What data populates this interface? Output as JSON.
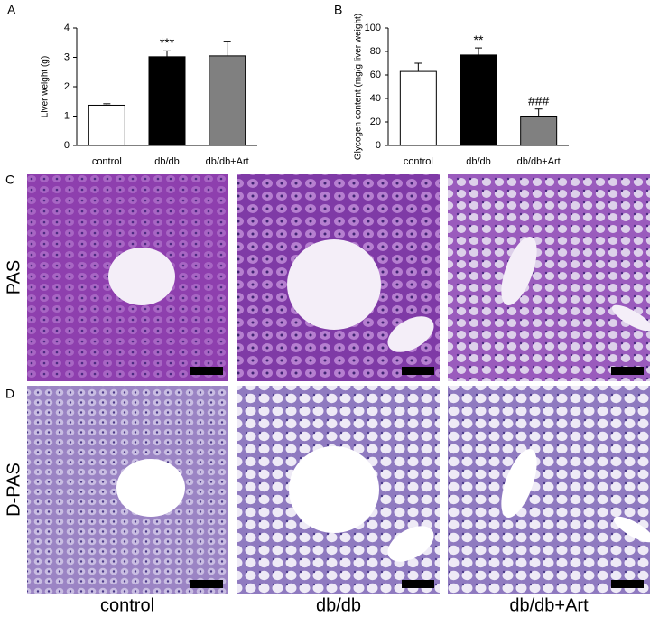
{
  "chart_data": [
    {
      "type": "bar",
      "ylabel": "Liver weight (g)",
      "categories": [
        "control",
        "db/db",
        "db/db+Art"
      ],
      "values": [
        1.37,
        3.02,
        3.05
      ],
      "errors": [
        0.05,
        0.2,
        0.5
      ],
      "colors": [
        "#ffffff",
        "#000000",
        "#808080"
      ],
      "annotations": [
        null,
        "***",
        null
      ],
      "ylim": [
        0,
        4
      ],
      "yticks": [
        0,
        1,
        2,
        3,
        4
      ],
      "grid": false
    },
    {
      "type": "bar",
      "ylabel": "Glycogen content (mg/g liver weight)",
      "categories": [
        "control",
        "db/db",
        "db/db+Art"
      ],
      "values": [
        63,
        77,
        25
      ],
      "errors": [
        7,
        6,
        6
      ],
      "colors": [
        "#ffffff",
        "#000000",
        "#808080"
      ],
      "annotations": [
        null,
        "**",
        "###"
      ],
      "ylim": [
        0,
        100
      ],
      "yticks": [
        0,
        20,
        40,
        60,
        80,
        100
      ],
      "grid": false
    }
  ],
  "figure": {
    "panel_labels": [
      "A",
      "B",
      "C",
      "D"
    ],
    "rows": [
      "PAS",
      "D-PAS"
    ],
    "columns": [
      "control",
      "db/db",
      "db/db+Art"
    ]
  }
}
